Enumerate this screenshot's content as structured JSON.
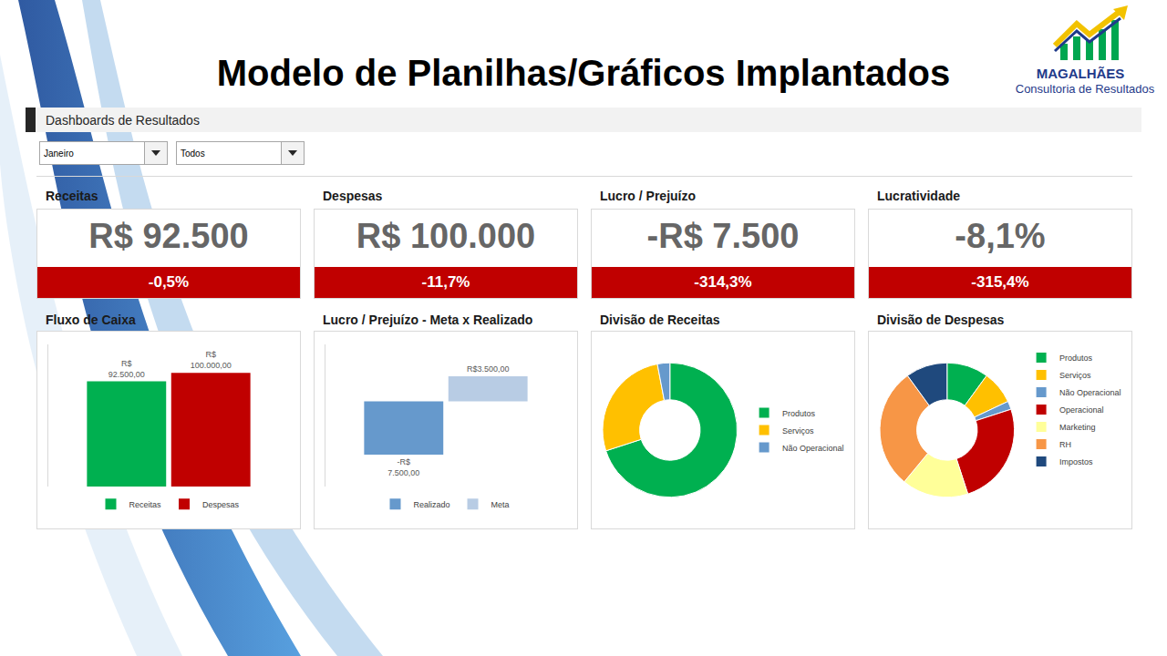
{
  "page": {
    "title": "Modelo de Planilhas/Gráficos Implantados",
    "logo": {
      "name": "MAGALHÃES",
      "tagline": "Consultoria de Resultados"
    },
    "section": "Dashboards de Resultados",
    "filters": [
      "Janeiro",
      "Todos"
    ]
  },
  "kpis": [
    {
      "label": "Receitas",
      "value": "R$ 92.500",
      "change": "-0,5%"
    },
    {
      "label": "Despesas",
      "value": "R$ 100.000",
      "change": "-11,7%"
    },
    {
      "label": "Lucro / Prejuízo",
      "value": "-R$ 7.500",
      "change": "-314,3%"
    },
    {
      "label": "Lucratividade",
      "value": "-8,1%",
      "change": "-315,4%"
    }
  ],
  "chart_data": [
    {
      "type": "bar",
      "title": "Fluxo de Caixa",
      "categories": [
        null
      ],
      "series": [
        {
          "name": "Receitas",
          "color": "#00b050",
          "values": [
            92500
          ],
          "value_labels": [
            "R$ 92.500,00"
          ]
        },
        {
          "name": "Despesas",
          "color": "#c00000",
          "values": [
            100000
          ],
          "value_labels": [
            "R$ 100.000,00"
          ]
        }
      ],
      "ylim": [
        0,
        125000
      ],
      "grid": false,
      "legend": "bottom",
      "data_labels": true,
      "tick_labels": false
    },
    {
      "type": "bar",
      "title": "Lucro / Prejuízo - Meta x Realizado",
      "categories": [
        null
      ],
      "series": [
        {
          "name": "Realizado",
          "color": "#6699cc",
          "values": [
            -7500
          ],
          "value_labels": [
            "-R$ 7.500,00"
          ]
        },
        {
          "name": "Meta",
          "color": "#b8cce4",
          "values": [
            3500
          ],
          "value_labels": [
            "R$3.500,00"
          ]
        }
      ],
      "ylim": [
        -12000,
        8000
      ],
      "grid": false,
      "legend": "bottom",
      "data_labels": true,
      "tick_labels": false
    },
    {
      "type": "pie",
      "title": "Divisão de Receitas",
      "categories": [
        "Produtos",
        "Serviços",
        "Não Operacional"
      ],
      "values": [
        70,
        27,
        3
      ],
      "colors": [
        "#00b050",
        "#ffc000",
        "#6699cc"
      ],
      "legend": "right",
      "data_labels": false
    },
    {
      "type": "pie",
      "title": "Divisão de Despesas",
      "categories": [
        "Produtos",
        "Serviços",
        "Não Operacional",
        "Operacional",
        "Marketing",
        "RH",
        "Impostos"
      ],
      "values": [
        10,
        8,
        2,
        25,
        16,
        29,
        10
      ],
      "colors": [
        "#00b050",
        "#ffc000",
        "#6699cc",
        "#c00000",
        "#ffff99",
        "#f79646",
        "#1f497d"
      ],
      "legend": "top right",
      "data_labels": false
    }
  ]
}
